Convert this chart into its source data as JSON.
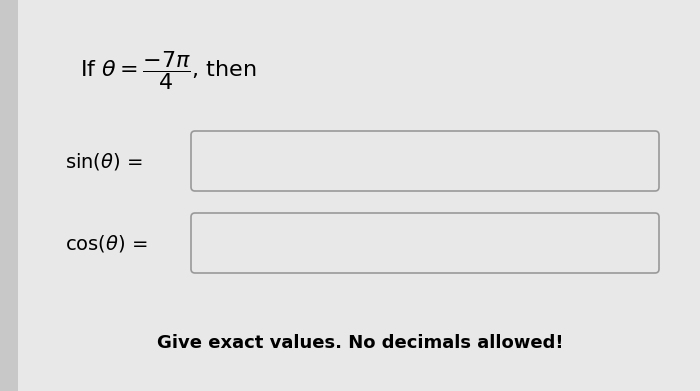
{
  "bg_color": "#c8c8c8",
  "main_color": "#e8e8e8",
  "box_color": "#e8e8e8",
  "box_border_color": "#999999",
  "text_color": "#000000",
  "footer": "Give exact values. No decimals allowed!",
  "fig_width": 7.0,
  "fig_height": 3.91
}
